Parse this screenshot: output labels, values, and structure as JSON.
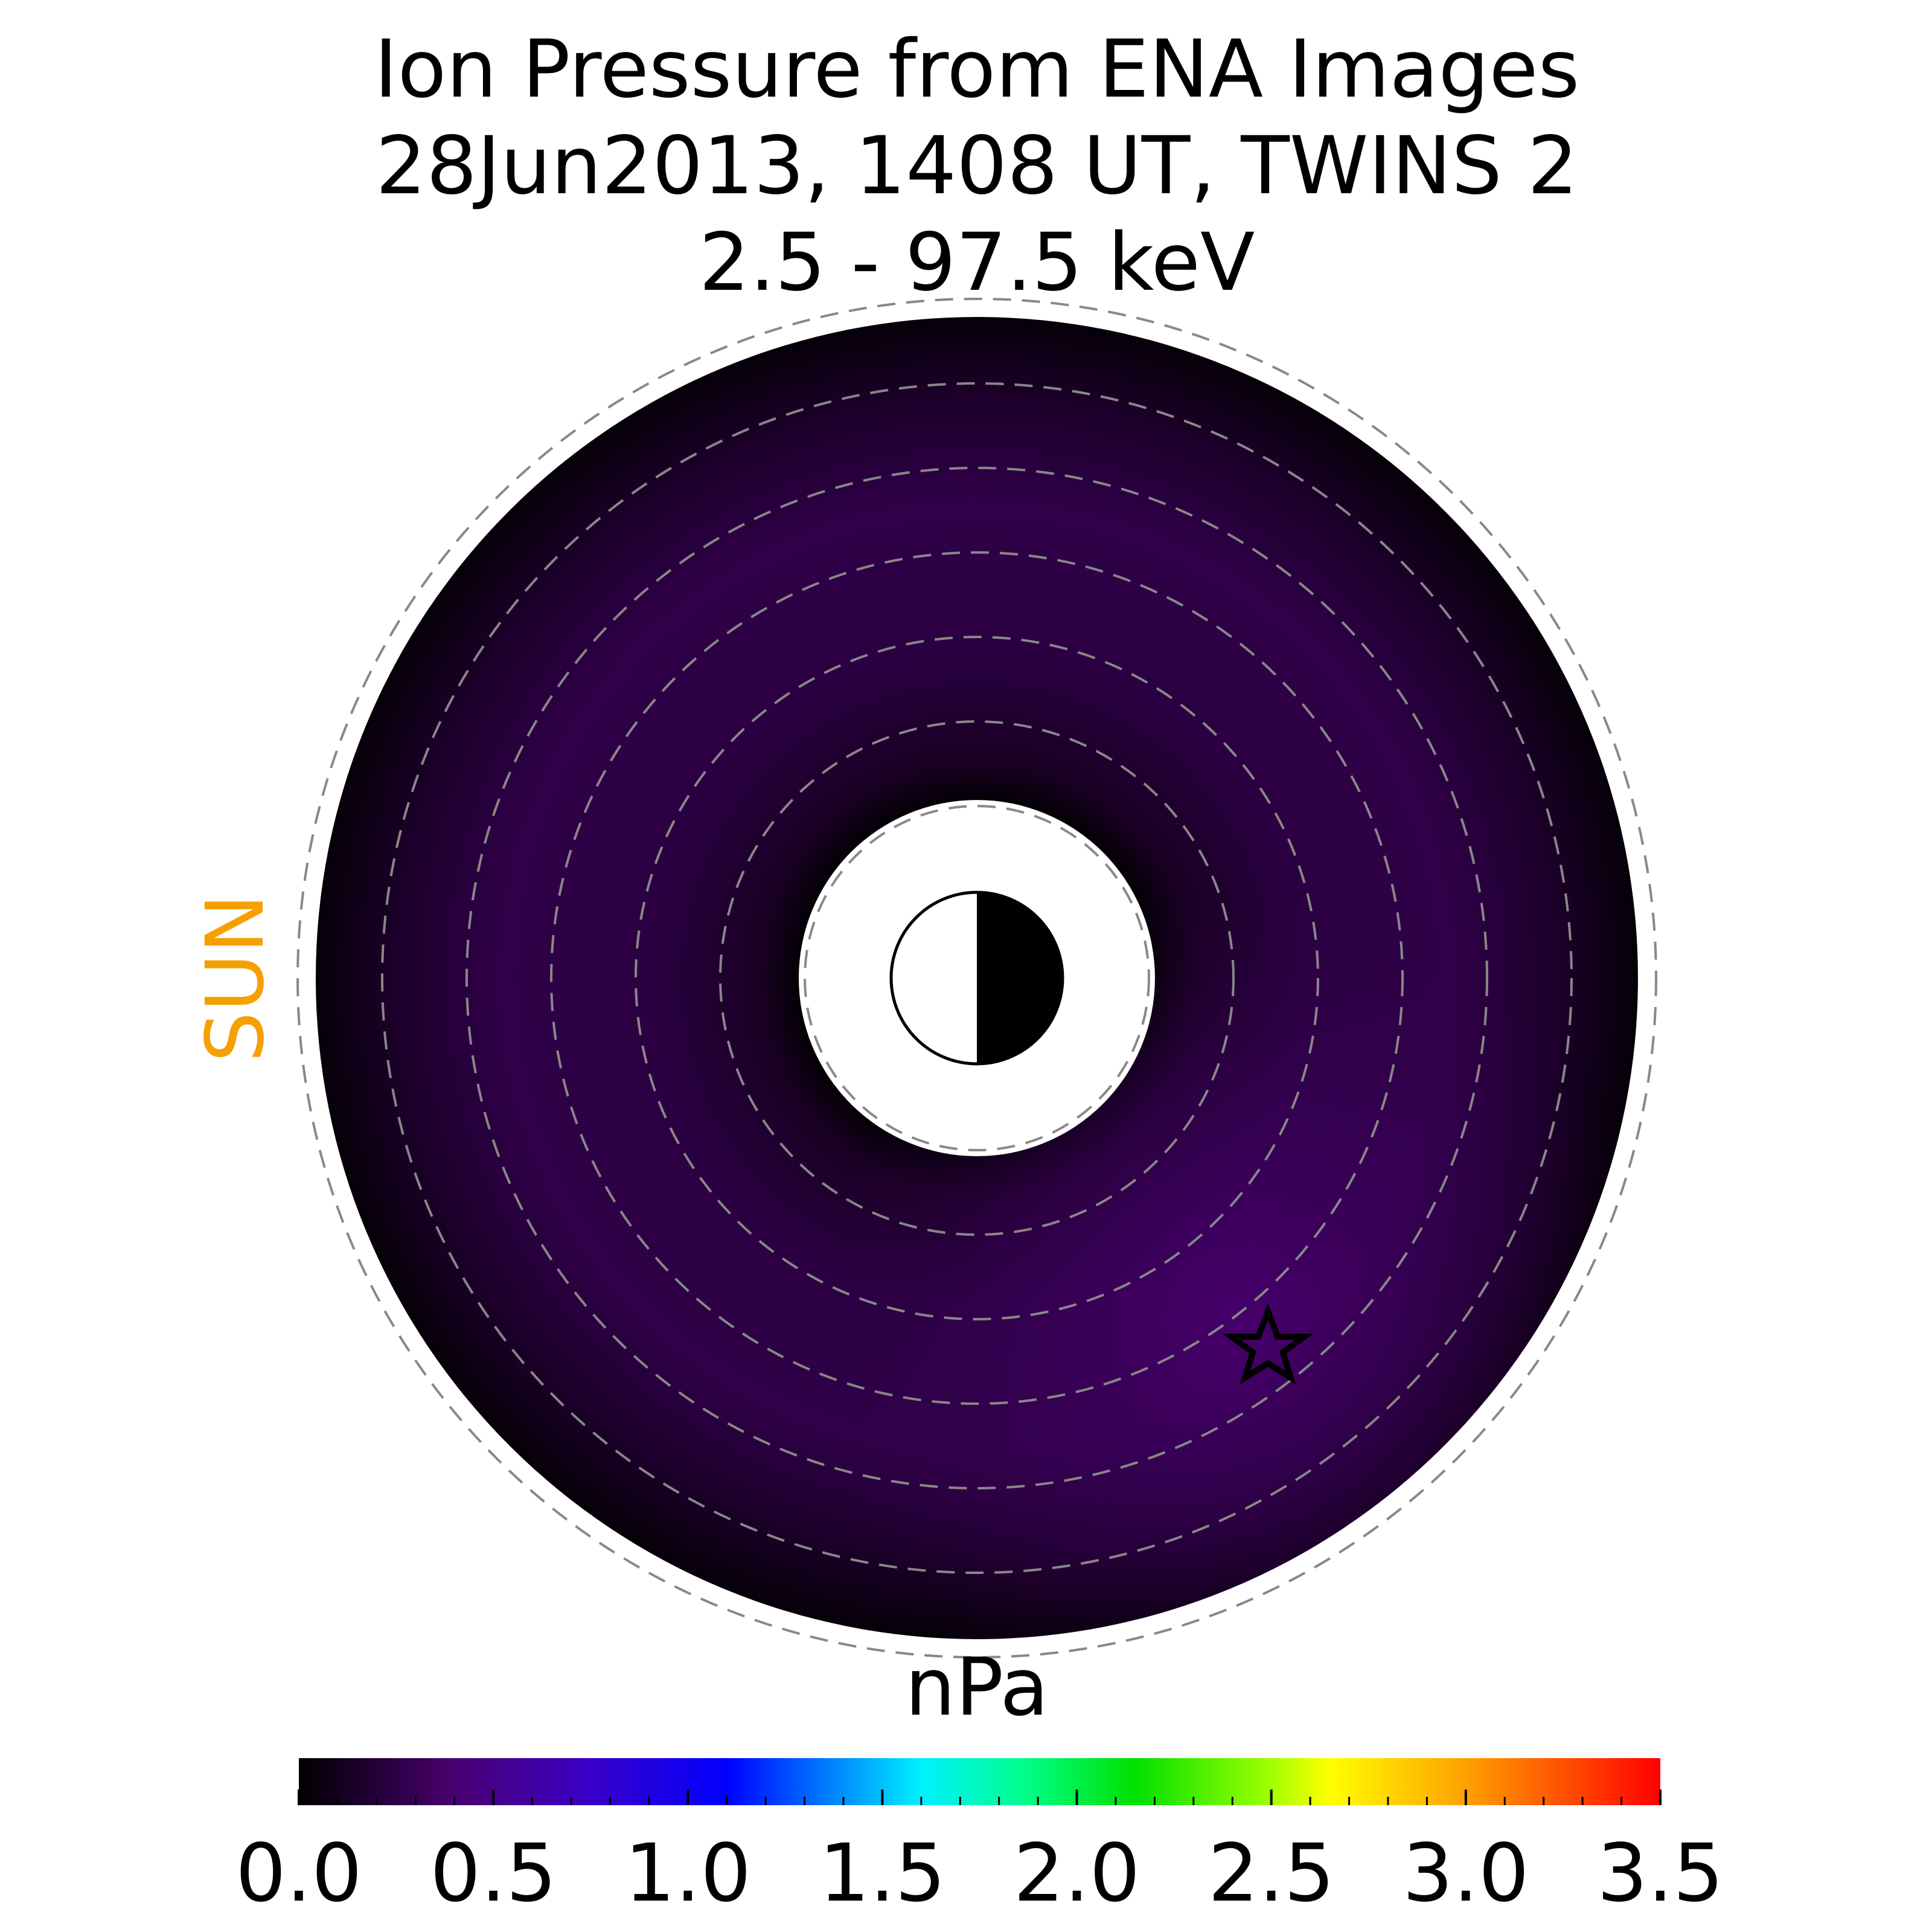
{
  "title": {
    "line1": "Ion Pressure from  ENA Images",
    "line2": "28Jun2013, 1408 UT,  TWINS 2",
    "line3": "2.5 - 97.5 keV"
  },
  "sun_label": "SUN",
  "colors": {
    "sun_label": "#f5a000",
    "grid_ring": "#888888",
    "background": "#ffffff"
  },
  "chart_data": {
    "type": "heatmap",
    "projection": "polar (equatorial plane, sun to the left)",
    "value_range": [
      0.0,
      3.5
    ],
    "colorscale": [
      {
        "value": 0.0,
        "color": "#000000"
      },
      {
        "value": 0.4,
        "color": "#4a0070"
      },
      {
        "value": 0.75,
        "color": "#3a00c8"
      },
      {
        "value": 1.1,
        "color": "#0000ff"
      },
      {
        "value": 1.45,
        "color": "#00a8ff"
      },
      {
        "value": 1.6,
        "color": "#00f0ff"
      },
      {
        "value": 1.85,
        "color": "#00ff90"
      },
      {
        "value": 2.15,
        "color": "#00e000"
      },
      {
        "value": 2.5,
        "color": "#a0ff00"
      },
      {
        "value": 2.65,
        "color": "#ffff00"
      },
      {
        "value": 3.0,
        "color": "#ffa000"
      },
      {
        "value": 3.5,
        "color": "#ff0000"
      }
    ],
    "peak_value_approx": 0.45,
    "peak_sector": "dusk-midnight (lower-right)",
    "grid": true,
    "marker": "star (lower-right)",
    "colorbar": {
      "label": "nPa",
      "ticks": [
        "0.0",
        "0.5",
        "1.0",
        "1.5",
        "2.0",
        "2.5",
        "3.0",
        "3.5"
      ],
      "range": [
        0.0,
        3.5
      ],
      "placement": "bottom"
    }
  }
}
